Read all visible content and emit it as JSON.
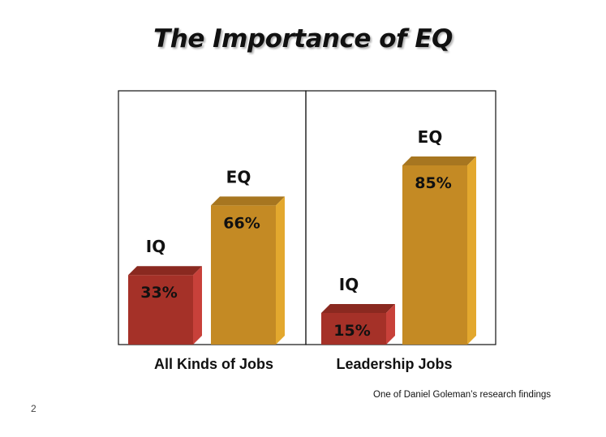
{
  "slide": {
    "title": "The Importance of EQ",
    "source_note": "One of Daniel Goleman’s research findings",
    "page_number": "2"
  },
  "colors": {
    "iq_front": "#a53128",
    "iq_top": "#8a2920",
    "iq_side": "#c8413a",
    "eq_front": "#c48a24",
    "eq_top": "#a77620",
    "eq_side": "#e3a82e",
    "frame": "#111111"
  },
  "chart_data": {
    "type": "bar",
    "title": "The Importance of EQ",
    "categories": [
      "All Kinds of Jobs",
      "Leadership Jobs"
    ],
    "series": [
      {
        "name": "IQ",
        "values": [
          33,
          15
        ],
        "labels": [
          "33%",
          "15%"
        ]
      },
      {
        "name": "EQ",
        "values": [
          66,
          85
        ],
        "labels": [
          "66%",
          "85%"
        ]
      }
    ],
    "ylim": [
      0,
      100
    ],
    "grid": false,
    "legend": "none"
  }
}
